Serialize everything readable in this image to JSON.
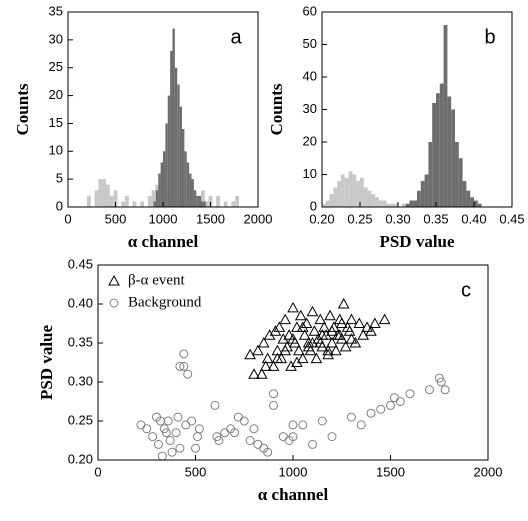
{
  "chart_data": [
    {
      "type": "histogram",
      "xlabel": "α channel",
      "ylabel": "Counts",
      "annotation": "a",
      "xlim": [
        0,
        2000
      ],
      "xticks": [
        0,
        500,
        1000,
        1500,
        2000
      ],
      "ylim": [
        0,
        35
      ],
      "yticks": [
        0,
        5,
        10,
        15,
        20,
        25,
        30,
        35
      ],
      "series": [
        {
          "color": "#c8c8c8",
          "bins": [
            200,
            240,
            280,
            320,
            360,
            400,
            440,
            480,
            520,
            560,
            600,
            640,
            680,
            720,
            760,
            800,
            840,
            880,
            920,
            960,
            1000,
            1040,
            1080,
            1120,
            1160,
            1200,
            1240,
            1280,
            1320,
            1360,
            1400,
            1440,
            1480,
            1520,
            1560,
            1600,
            1640,
            1680,
            1720,
            1760,
            1800
          ],
          "values": [
            2,
            0,
            3,
            5,
            5,
            4,
            2,
            3,
            0,
            1,
            2,
            0,
            1,
            0,
            1,
            0,
            2,
            3,
            4,
            5,
            3,
            2,
            0,
            0,
            1,
            0,
            1,
            2,
            0,
            1,
            3,
            1,
            2,
            0,
            2,
            0,
            1,
            0,
            1,
            2
          ]
        },
        {
          "color": "#6e6e6e",
          "bins": [
            900,
            925,
            950,
            975,
            1000,
            1025,
            1050,
            1075,
            1100,
            1125,
            1150,
            1175,
            1200,
            1225,
            1250,
            1275,
            1300,
            1325,
            1350,
            1375,
            1400,
            1425,
            1450
          ],
          "values": [
            1,
            3,
            6,
            8,
            10,
            15,
            20,
            28,
            32,
            25,
            22,
            18,
            14,
            10,
            8,
            6,
            5,
            3,
            2,
            2,
            1,
            1
          ]
        }
      ]
    },
    {
      "type": "histogram",
      "xlabel": "PSD value",
      "ylabel": "Counts",
      "annotation": "b",
      "xlim": [
        0.2,
        0.45
      ],
      "xticks": [
        {
          "value": 0.2,
          "label": "0.20"
        },
        0.25,
        {
          "value": 0.3,
          "label": "0.30"
        },
        0.35,
        {
          "value": 0.4,
          "label": "0.40"
        },
        0.45
      ],
      "ylim": [
        0,
        60
      ],
      "yticks": [
        0,
        10,
        20,
        30,
        40,
        50,
        60
      ],
      "series": [
        {
          "color": "#c8c8c8",
          "bins": [
            0.2,
            0.205,
            0.21,
            0.215,
            0.22,
            0.225,
            0.23,
            0.235,
            0.24,
            0.245,
            0.25,
            0.255,
            0.26,
            0.265,
            0.27,
            0.275,
            0.28,
            0.285,
            0.29,
            0.295,
            0.3,
            0.305,
            0.31,
            0.315,
            0.32
          ],
          "values": [
            1,
            2,
            4,
            6,
            8,
            10,
            9,
            11,
            10,
            8,
            9,
            6,
            5,
            4,
            3,
            2,
            2,
            1,
            1,
            1,
            0,
            1,
            0,
            1
          ]
        },
        {
          "color": "#6e6e6e",
          "bins": [
            0.31,
            0.315,
            0.32,
            0.325,
            0.33,
            0.335,
            0.34,
            0.345,
            0.35,
            0.355,
            0.36,
            0.365,
            0.37,
            0.375,
            0.38,
            0.385,
            0.39,
            0.395,
            0.4,
            0.405,
            0.41
          ],
          "values": [
            1,
            2,
            2,
            5,
            8,
            10,
            20,
            32,
            35,
            38,
            56,
            34,
            30,
            20,
            15,
            8,
            5,
            3,
            2,
            1
          ]
        }
      ]
    },
    {
      "type": "scatter",
      "xlabel": "α channel",
      "ylabel": "PSD value",
      "annotation": "c",
      "legend": "upper left",
      "xlim": [
        0,
        2000
      ],
      "xticks": [
        0,
        500,
        1000,
        1500,
        2000
      ],
      "ylim": [
        0.2,
        0.45
      ],
      "yticks": [
        {
          "value": 0.2,
          "label": "0.20"
        },
        0.25,
        {
          "value": 0.3,
          "label": "0.30"
        },
        0.35,
        {
          "value": 0.4,
          "label": "0.40"
        },
        0.45
      ],
      "series": [
        {
          "name": "β-α event",
          "marker": "triangle",
          "color": "#000000",
          "x": [
            780,
            800,
            820,
            840,
            850,
            870,
            880,
            900,
            910,
            920,
            930,
            940,
            950,
            960,
            970,
            980,
            990,
            1000,
            1010,
            1020,
            1030,
            1040,
            1050,
            1060,
            1070,
            1080,
            1090,
            1100,
            1110,
            1120,
            1130,
            1140,
            1150,
            1160,
            1170,
            1180,
            1190,
            1200,
            1210,
            1220,
            1230,
            1240,
            1250,
            1260,
            1270,
            1280,
            1290,
            1300,
            1320,
            1340,
            1360,
            1380,
            1400,
            1420,
            1470,
            1000,
            1050,
            1100,
            1150,
            1200,
            1250,
            1020,
            1080,
            1140,
            1180,
            1240,
            1300,
            960,
            920,
            860
          ],
          "y": [
            0.335,
            0.31,
            0.34,
            0.31,
            0.35,
            0.33,
            0.36,
            0.32,
            0.365,
            0.34,
            0.37,
            0.33,
            0.355,
            0.38,
            0.345,
            0.36,
            0.32,
            0.395,
            0.35,
            0.37,
            0.34,
            0.385,
            0.33,
            0.36,
            0.375,
            0.35,
            0.34,
            0.39,
            0.365,
            0.33,
            0.355,
            0.38,
            0.345,
            0.37,
            0.36,
            0.335,
            0.385,
            0.35,
            0.37,
            0.34,
            0.36,
            0.38,
            0.355,
            0.4,
            0.345,
            0.37,
            0.365,
            0.38,
            0.35,
            0.375,
            0.36,
            0.37,
            0.365,
            0.375,
            0.38,
            0.355,
            0.37,
            0.35,
            0.36,
            0.365,
            0.375,
            0.325,
            0.345,
            0.35,
            0.34,
            0.36,
            0.355,
            0.34,
            0.33,
            0.32
          ]
        },
        {
          "name": "Background",
          "marker": "circle",
          "color": "#808080",
          "x": [
            220,
            250,
            280,
            300,
            310,
            320,
            330,
            340,
            350,
            360,
            370,
            380,
            400,
            410,
            420,
            440,
            450,
            480,
            500,
            510,
            520,
            600,
            610,
            620,
            650,
            680,
            700,
            720,
            750,
            780,
            800,
            820,
            850,
            870,
            900,
            950,
            980,
            1000,
            1050,
            1100,
            1150,
            1200,
            1300,
            1350,
            1400,
            1450,
            1500,
            1520,
            1550,
            1600,
            1700,
            1750,
            1760,
            1780,
            440,
            420,
            460,
            900,
            1000
          ],
          "y": [
            0.245,
            0.24,
            0.23,
            0.255,
            0.22,
            0.25,
            0.205,
            0.24,
            0.235,
            0.25,
            0.225,
            0.21,
            0.235,
            0.255,
            0.215,
            0.32,
            0.245,
            0.25,
            0.215,
            0.23,
            0.24,
            0.27,
            0.23,
            0.225,
            0.235,
            0.24,
            0.235,
            0.255,
            0.25,
            0.225,
            0.24,
            0.22,
            0.215,
            0.21,
            0.285,
            0.23,
            0.225,
            0.23,
            0.245,
            0.22,
            0.25,
            0.23,
            0.255,
            0.245,
            0.26,
            0.265,
            0.27,
            0.28,
            0.275,
            0.285,
            0.29,
            0.305,
            0.3,
            0.29,
            0.336,
            0.32,
            0.31,
            0.27,
            0.245
          ]
        }
      ]
    }
  ]
}
